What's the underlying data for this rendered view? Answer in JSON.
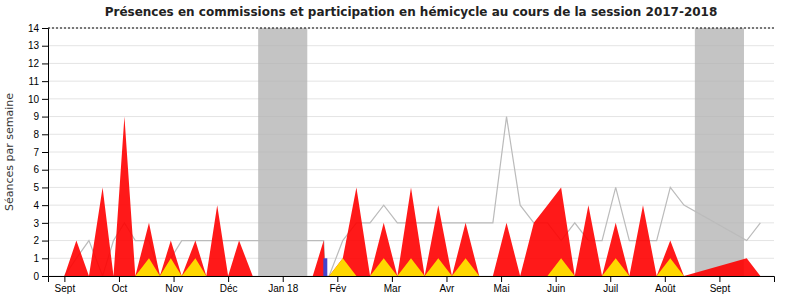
{
  "chart_data": {
    "type": "area",
    "title": "Présences en commissions et participation en hémicycle au cours de la session 2017-2018",
    "ylabel": "Séances par semaine",
    "x": [
      0,
      0.22,
      0.45,
      0.7,
      0.9,
      1.1,
      1.3,
      1.55,
      1.75,
      1.95,
      2.15,
      2.4,
      2.6,
      2.8,
      3.0,
      3.2,
      3.45,
      4.55,
      4.75,
      4.78,
      4.85,
      5.1,
      5.35,
      5.6,
      5.85,
      6.1,
      6.35,
      6.6,
      6.85,
      7.1,
      7.35,
      7.6,
      7.85,
      8.1,
      8.35,
      8.6,
      8.85,
      9.1,
      9.35,
      9.6,
      9.85,
      10.1,
      10.35,
      10.6,
      10.85,
      11.1,
      11.35,
      12.5,
      12.75
    ],
    "xlim": [
      -0.3,
      13.0
    ],
    "xticks": [
      {
        "value": 0,
        "label": "Sept"
      },
      {
        "value": 1,
        "label": "Oct"
      },
      {
        "value": 2,
        "label": "Nov"
      },
      {
        "value": 3,
        "label": "Déc"
      },
      {
        "value": 4,
        "label": "Jan 18"
      },
      {
        "value": 5,
        "label": "Fév"
      },
      {
        "value": 6,
        "label": "Mar"
      },
      {
        "value": 7,
        "label": "Avr"
      },
      {
        "value": 8,
        "label": "Mai"
      },
      {
        "value": 9,
        "label": "Juin"
      },
      {
        "value": 10,
        "label": "Juil"
      },
      {
        "value": 11,
        "label": "Août"
      },
      {
        "value": 12,
        "label": "Sept"
      }
    ],
    "ylim": [
      0,
      14
    ],
    "yticks": [
      0,
      1,
      2,
      3,
      4,
      5,
      6,
      7,
      8,
      9,
      10,
      11,
      12,
      13,
      14
    ],
    "grid": true,
    "series": [
      {
        "type": "line",
        "color": "#bbbbbb",
        "values": [
          0,
          1,
          2,
          0,
          2,
          3,
          2,
          2,
          0,
          1,
          2,
          2,
          2,
          2,
          2,
          2,
          2,
          2,
          2,
          0,
          0,
          2,
          3,
          3,
          4,
          3,
          3,
          3,
          3,
          3,
          3,
          3,
          3,
          9,
          4,
          3,
          3,
          2,
          3,
          2,
          2,
          5,
          2,
          2,
          2,
          5,
          4,
          2,
          3
        ]
      },
      {
        "type": "area",
        "color": "red",
        "values": [
          0,
          2,
          0,
          5,
          0,
          9,
          0,
          3,
          0,
          2,
          0,
          2,
          0,
          4,
          0,
          2,
          0,
          0,
          2,
          0,
          0,
          1,
          5,
          0,
          3,
          0,
          5,
          0,
          4,
          0,
          3,
          0,
          0,
          3,
          0,
          3,
          4,
          5,
          0,
          4,
          0,
          3,
          0,
          4,
          0,
          2,
          0,
          1,
          0
        ]
      },
      {
        "type": "area",
        "color": "#FFD700",
        "values": [
          0,
          0,
          0,
          0,
          0,
          0,
          0,
          1,
          0,
          1,
          0,
          1,
          0,
          0,
          0,
          0,
          0,
          0,
          0,
          0,
          0,
          1,
          0,
          0,
          1,
          0,
          1,
          0,
          1,
          0,
          1,
          0,
          0,
          0,
          0,
          0,
          0,
          1,
          0,
          0,
          0,
          1,
          0,
          0,
          0,
          1,
          0,
          0,
          0
        ]
      },
      {
        "type": "bar",
        "color": "#4444cc",
        "x": [
          4.78
        ],
        "values": [
          1.0
        ]
      }
    ],
    "shaded_regions": [
      {
        "xstart": 3.55,
        "xend": 4.45
      },
      {
        "xstart": 11.55,
        "xend": 12.45
      }
    ],
    "shade_color": "#b0b0b0",
    "reference_lines": [
      14
    ]
  }
}
